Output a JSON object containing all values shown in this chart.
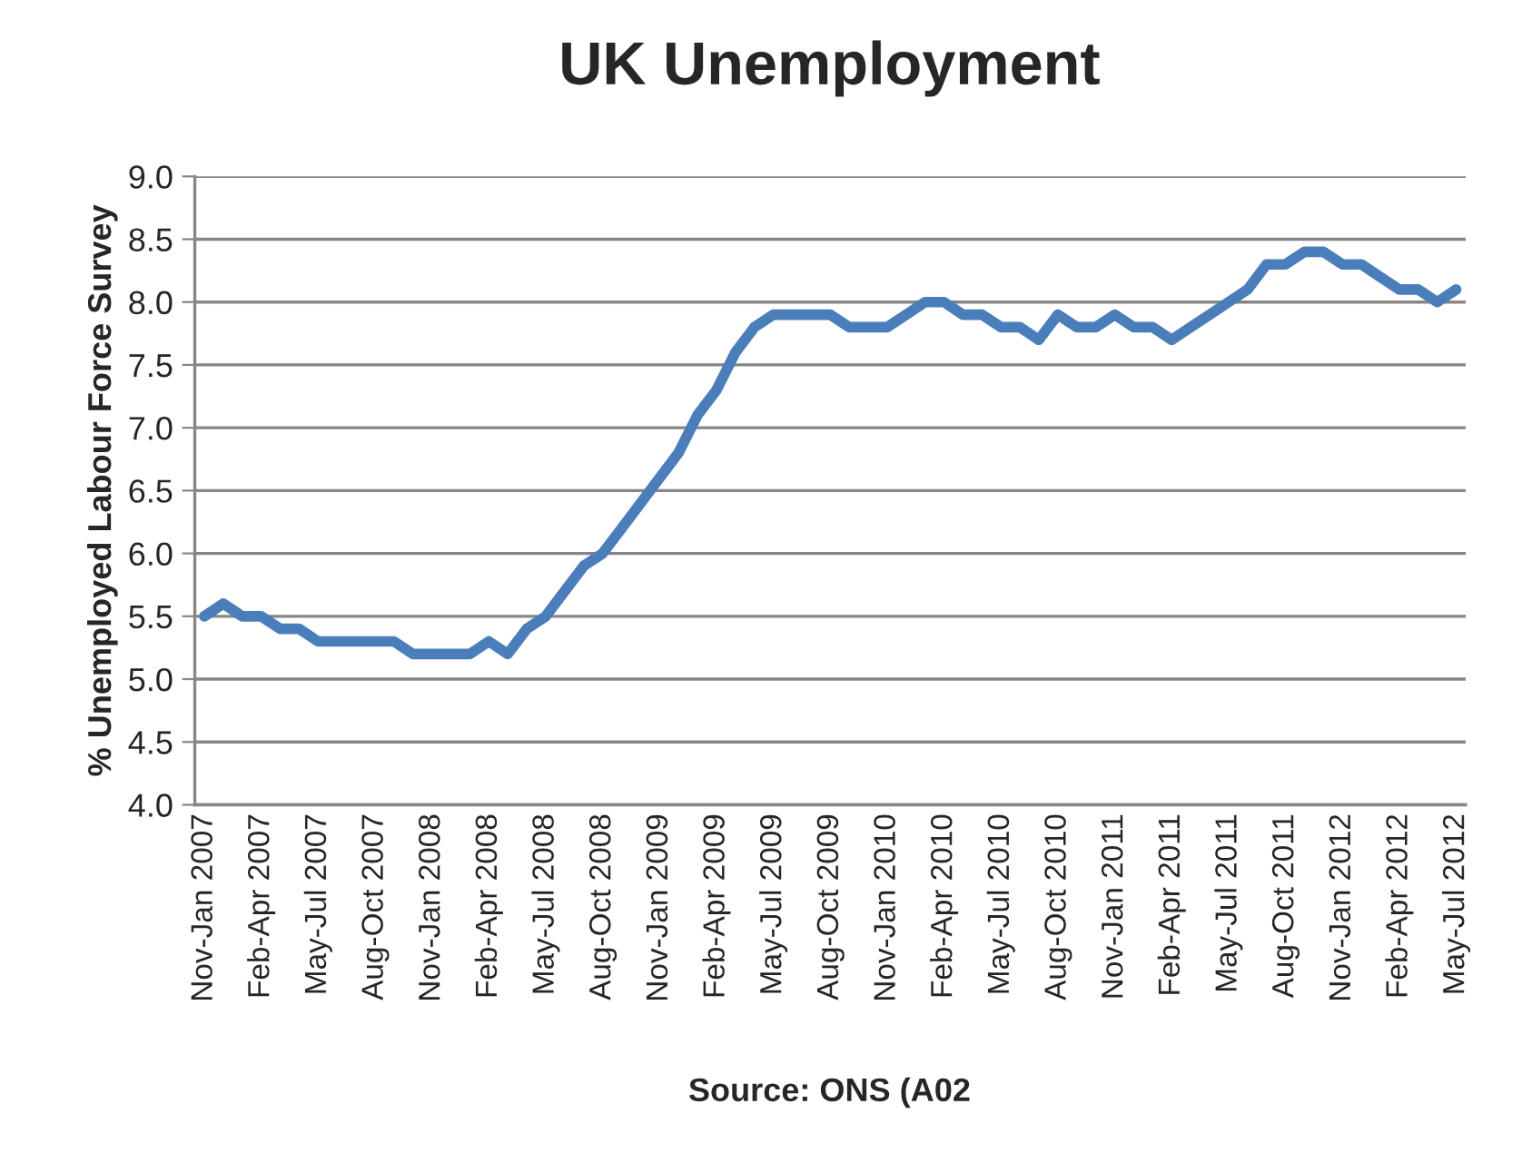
{
  "chart_data": {
    "type": "line",
    "title": "UK Unemployment",
    "ylabel": "% Unemployed Labour Force Survey",
    "categories": [
      "Nov-Jan 2007",
      null,
      null,
      "Feb-Apr 2007",
      null,
      null,
      "May-Jul 2007",
      null,
      null,
      "Aug-Oct 2007",
      null,
      null,
      "Nov-Jan 2008",
      null,
      null,
      "Feb-Apr 2008",
      null,
      null,
      "May-Jul 2008",
      null,
      null,
      "Aug-Oct 2008",
      null,
      null,
      "Nov-Jan 2009",
      null,
      null,
      "Feb-Apr 2009",
      null,
      null,
      "May-Jul 2009",
      null,
      null,
      "Aug-Oct 2009",
      null,
      null,
      "Nov-Jan 2010",
      null,
      null,
      "Feb-Apr 2010",
      null,
      null,
      "May-Jul 2010",
      null,
      null,
      "Aug-Oct 2010",
      null,
      null,
      "Nov-Jan 2011",
      null,
      null,
      "Feb-Apr 2011",
      null,
      null,
      "May-Jul 2011",
      null,
      null,
      "Aug-Oct 2011",
      null,
      null,
      "Nov-Jan 2012",
      null,
      null,
      "Feb-Apr 2012",
      null,
      null,
      "May-Jul 2012"
    ],
    "series": [
      {
        "color": "#4a7ebb",
        "values": [
          5.5,
          5.6,
          5.5,
          5.5,
          5.4,
          5.4,
          5.3,
          5.3,
          5.3,
          5.3,
          5.3,
          5.2,
          5.2,
          5.2,
          5.2,
          5.3,
          5.2,
          5.4,
          5.5,
          5.7,
          5.9,
          6.0,
          6.2,
          6.4,
          6.6,
          6.8,
          7.1,
          7.3,
          7.6,
          7.8,
          7.9,
          7.9,
          7.9,
          7.9,
          7.8,
          7.8,
          7.8,
          7.9,
          8.0,
          8.0,
          7.9,
          7.9,
          7.8,
          7.8,
          7.7,
          7.9,
          7.8,
          7.8,
          7.9,
          7.8,
          7.8,
          7.7,
          7.8,
          7.9,
          8.0,
          8.1,
          8.3,
          8.3,
          8.4,
          8.4,
          8.3,
          8.3,
          8.2,
          8.1,
          8.1,
          8.0,
          8.1
        ]
      }
    ],
    "ylim": [
      4.0,
      9.0
    ],
    "yticks": [
      {
        "value": 4.0,
        "label": "4.0"
      },
      {
        "value": 4.5,
        "label": "4.5"
      },
      {
        "value": 5.0,
        "label": "5.0"
      },
      {
        "value": 5.5,
        "label": "5.5"
      },
      {
        "value": 6.0,
        "label": "6.0"
      },
      {
        "value": 6.5,
        "label": "6.5"
      },
      {
        "value": 7.0,
        "label": "7.0"
      },
      {
        "value": 7.5,
        "label": "7.5"
      },
      {
        "value": 8.0,
        "label": "8.0"
      },
      {
        "value": 8.5,
        "label": "8.5"
      },
      {
        "value": 9.0,
        "label": "9.0"
      }
    ],
    "grid": "y",
    "marker": "none",
    "line_style": "solid",
    "annotations": [
      "Source: ONS (A02"
    ]
  }
}
